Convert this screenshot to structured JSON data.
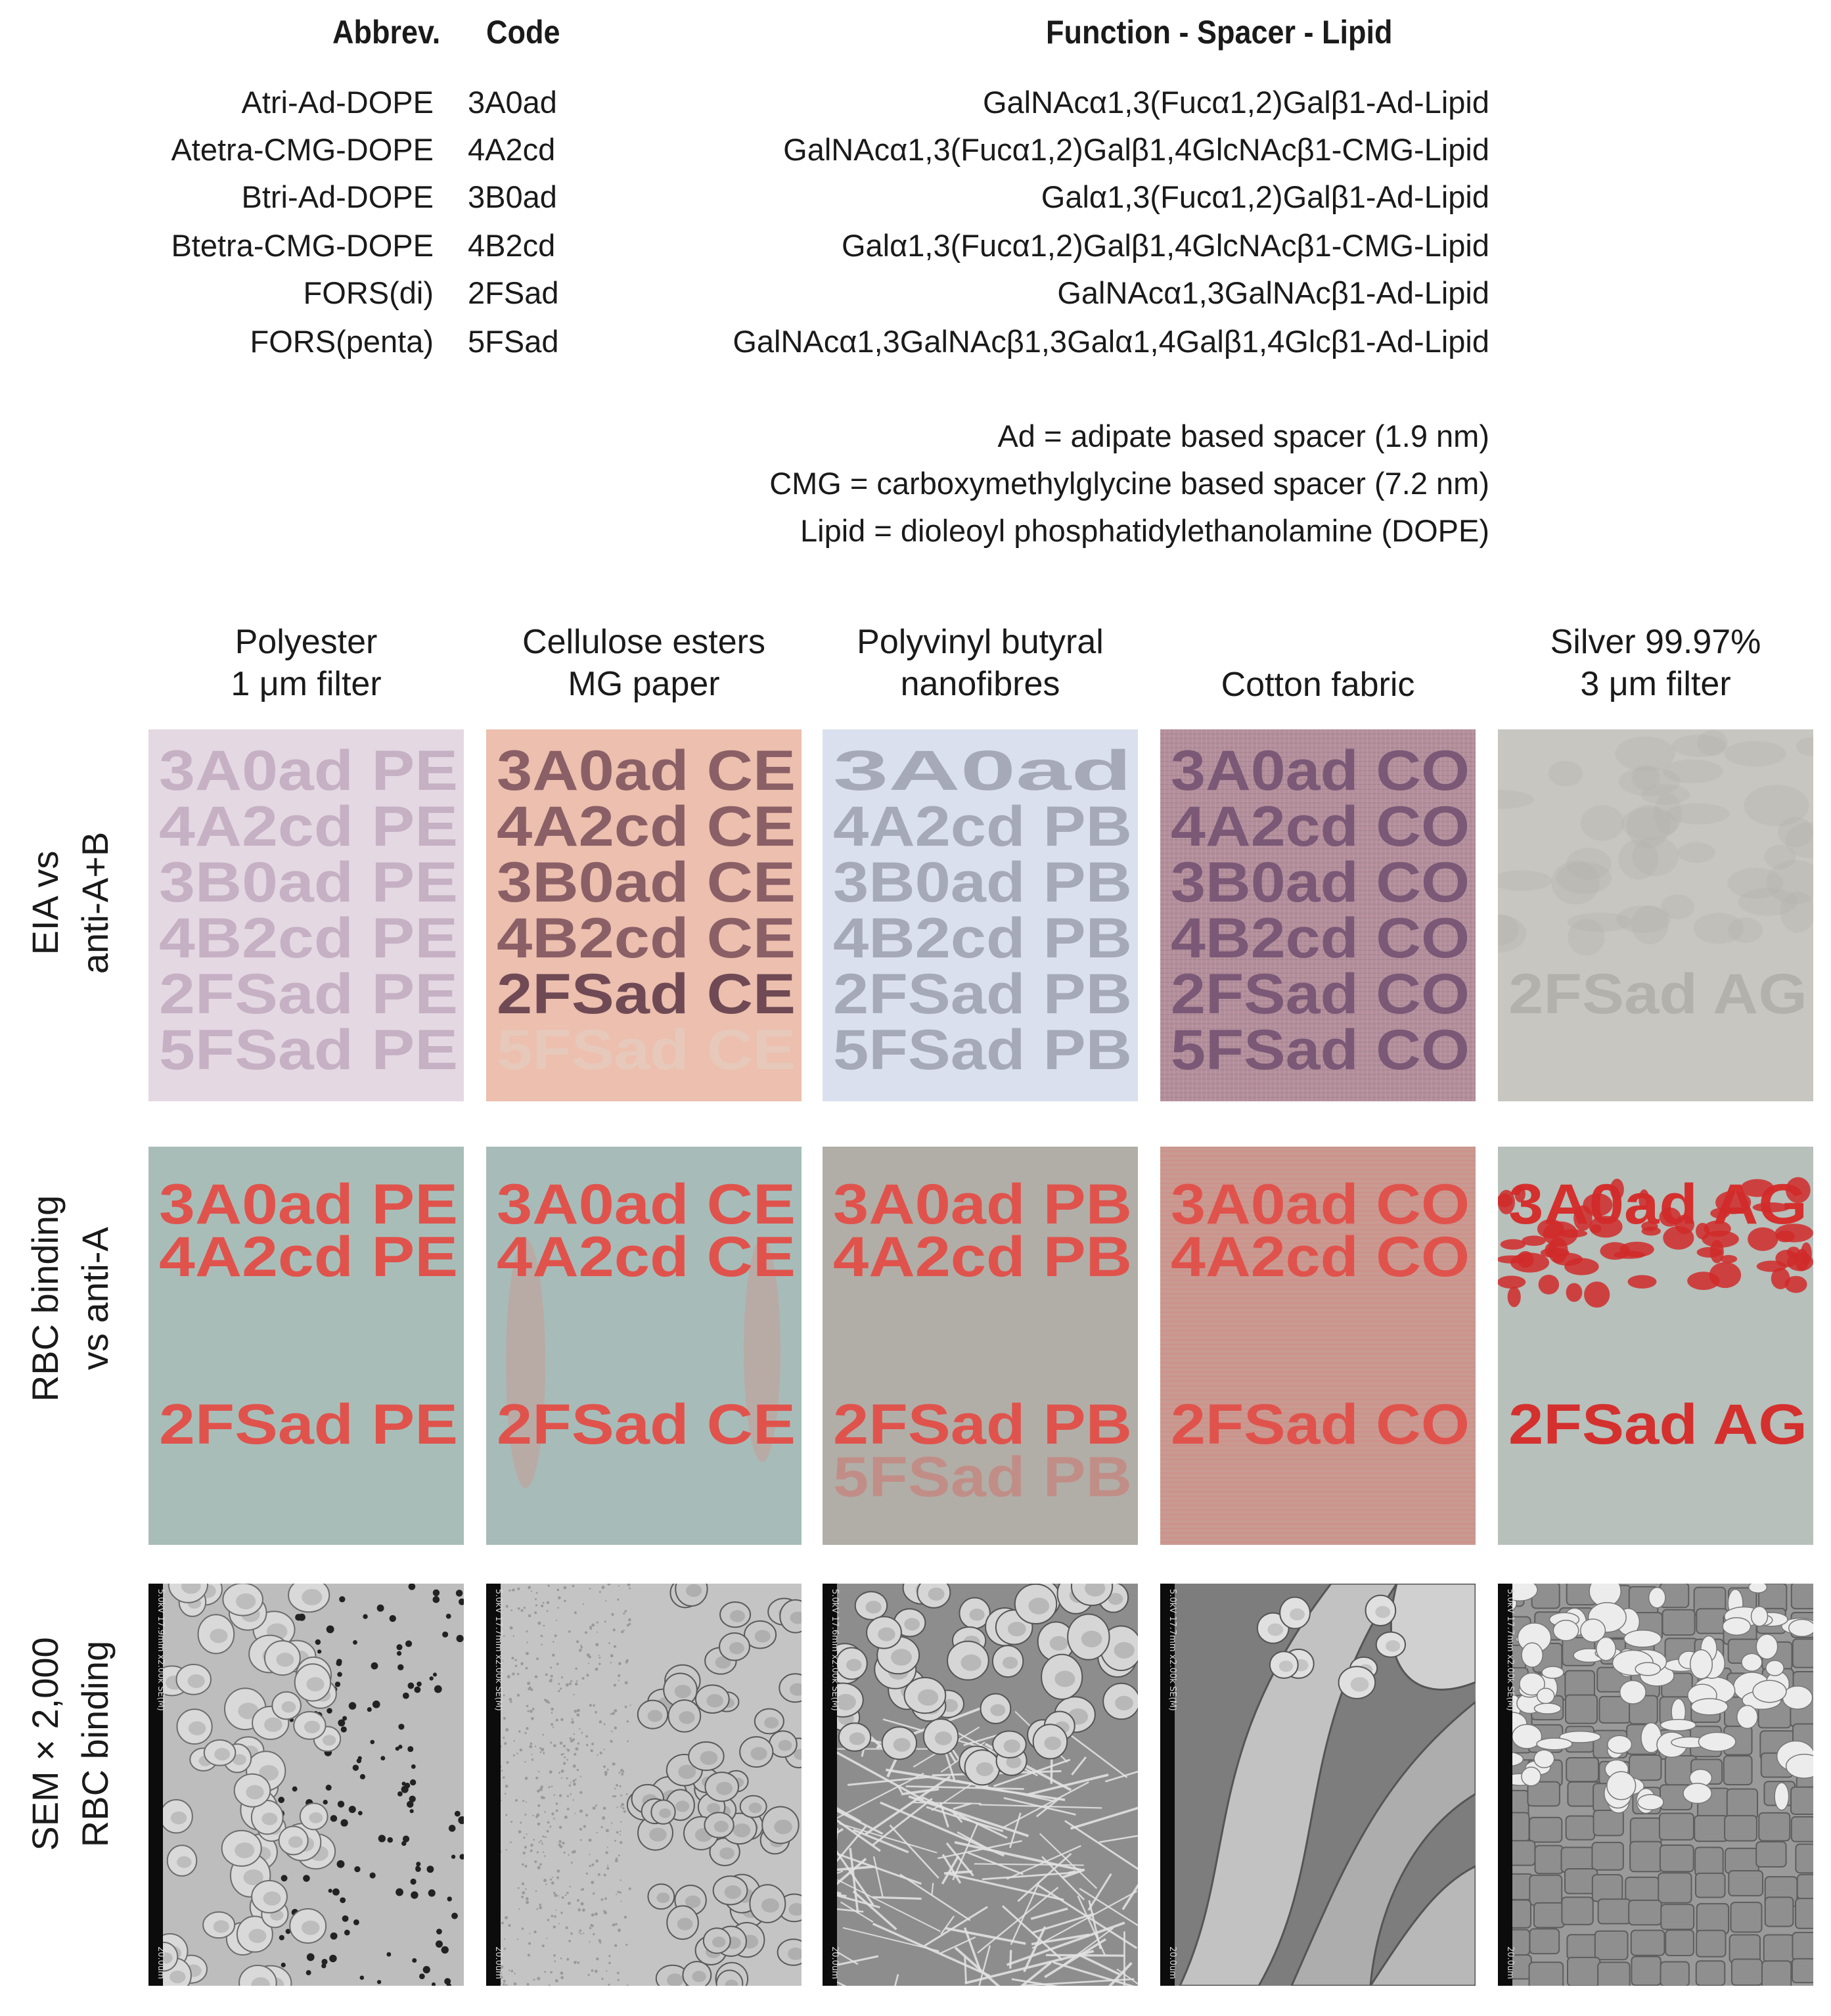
{
  "table": {
    "headers": {
      "abbrev": "Abbrev.",
      "code": "Code",
      "function": "Function - Spacer - Lipid"
    },
    "rows": [
      {
        "abbrev": "Atri-Ad-DOPE",
        "code": "3A0ad",
        "function": "GalNAcα1,3(Fucα1,2)Galβ1-Ad-Lipid"
      },
      {
        "abbrev": "Atetra-CMG-DOPE",
        "code": "4A2cd",
        "function": "GalNAcα1,3(Fucα1,2)Galβ1,4GlcNAcβ1-CMG-Lipid"
      },
      {
        "abbrev": "Btri-Ad-DOPE",
        "code": "3B0ad",
        "function": "Galα1,3(Fucα1,2)Galβ1-Ad-Lipid"
      },
      {
        "abbrev": "Btetra-CMG-DOPE",
        "code": "4B2cd",
        "function": "Galα1,3(Fucα1,2)Galβ1,4GlcNAcβ1-CMG-Lipid"
      },
      {
        "abbrev": "FORS(di)",
        "code": "2FSad",
        "function": "GalNAcα1,3GalNAcβ1-Ad-Lipid"
      },
      {
        "abbrev": "FORS(penta)",
        "code": "5FSad",
        "function": "GalNAcα1,3GalNAcβ1,3Galα1,4Galβ1,4Glcβ1-Ad-Lipid"
      }
    ],
    "legend": [
      "Ad = adipate based spacer (1.9 nm)",
      "CMG = carboxymethylglycine based spacer (7.2 nm)",
      "Lipid = dioleoyl phosphatidylethanolamine (DOPE)"
    ]
  },
  "columns": [
    {
      "line1": "Polyester",
      "line2": "1 μm filter",
      "suffix": "PE"
    },
    {
      "line1": "Cellulose esters",
      "line2": "MG paper",
      "suffix": "CE"
    },
    {
      "line1": "Polyvinyl butyral",
      "line2": "nanofibres",
      "suffix": "PB"
    },
    {
      "line1": "",
      "line2": "Cotton fabric",
      "suffix": "CO"
    },
    {
      "line1": "Silver 99.97%",
      "line2": "3 μm filter",
      "suffix": "AG"
    }
  ],
  "row_labels": {
    "eia": {
      "line1": "EIA vs",
      "line2": "anti-A+B"
    },
    "rbc": {
      "line1": "RBC binding",
      "line2": "vs anti-A"
    },
    "sem": {
      "line1": "SEM × 2,000",
      "line2": "RBC binding"
    }
  },
  "eia_panels": [
    {
      "lines": [
        "3A0ad PE",
        "4A2cd PE",
        "3B0ad PE",
        "4B2cd PE",
        "2FSad PE",
        "5FSad PE"
      ]
    },
    {
      "lines": [
        "3A0ad CE",
        "4A2cd CE",
        "3B0ad CE",
        "4B2cd CE",
        "2FSad CE",
        "5FSad CE"
      ]
    },
    {
      "lines": [
        "3A0ad",
        "4A2cd PB",
        "3B0ad PB",
        "4B2cd PB",
        "2FSad PB",
        "5FSad PB"
      ]
    },
    {
      "lines": [
        "3A0ad CO",
        "4A2cd CO",
        "3B0ad CO",
        "4B2cd CO",
        "2FSad CO",
        "5FSad CO"
      ]
    },
    {
      "lines": [
        "",
        "",
        "",
        "",
        "2FSad AG",
        ""
      ]
    }
  ],
  "rbc_panels": [
    {
      "lines": [
        "3A0ad PE",
        "4A2cd PE",
        "2FSad PE"
      ]
    },
    {
      "lines": [
        "3A0ad CE",
        "4A2cd CE",
        "2FSad CE"
      ]
    },
    {
      "lines": [
        "3A0ad PB",
        "4A2cd PB",
        "2FSad PB",
        "5FSad PB"
      ]
    },
    {
      "lines": [
        "3A0ad CO",
        "4A2cd CO",
        "2FSad CO"
      ]
    },
    {
      "lines": [
        "3A0ad AG",
        "",
        "2FSad AG"
      ]
    }
  ],
  "sem": {
    "bar_top": [
      "5.0kV 17.9mm x2.00k SE(M)",
      "5.0kV 17.7mm x2.00k SE(M)",
      "5.0kV 17.6mm x2.00k SE(M)",
      "5.0kV 17.7mm x2.00k SE(M)",
      "5.0kV 17.7mm x2.00k SE(M)"
    ],
    "bar_bottom": "20.0um"
  },
  "colors": {
    "eia_bg": [
      "#e4d8e2",
      "#ecbfae",
      "#dbe0ee",
      "#b48f9b",
      "#c7c6c0"
    ],
    "eia_text": [
      "#c6b0c4",
      "#8a5f66",
      "#a6a9b8",
      "#7a5876",
      "#b2b1ab"
    ],
    "rbc_bg": [
      "#a9bdb8",
      "#a7bcb9",
      "#b1aea7",
      "#c89a92",
      "#b7c0bb"
    ],
    "rbc_text": "#e0534c"
  }
}
